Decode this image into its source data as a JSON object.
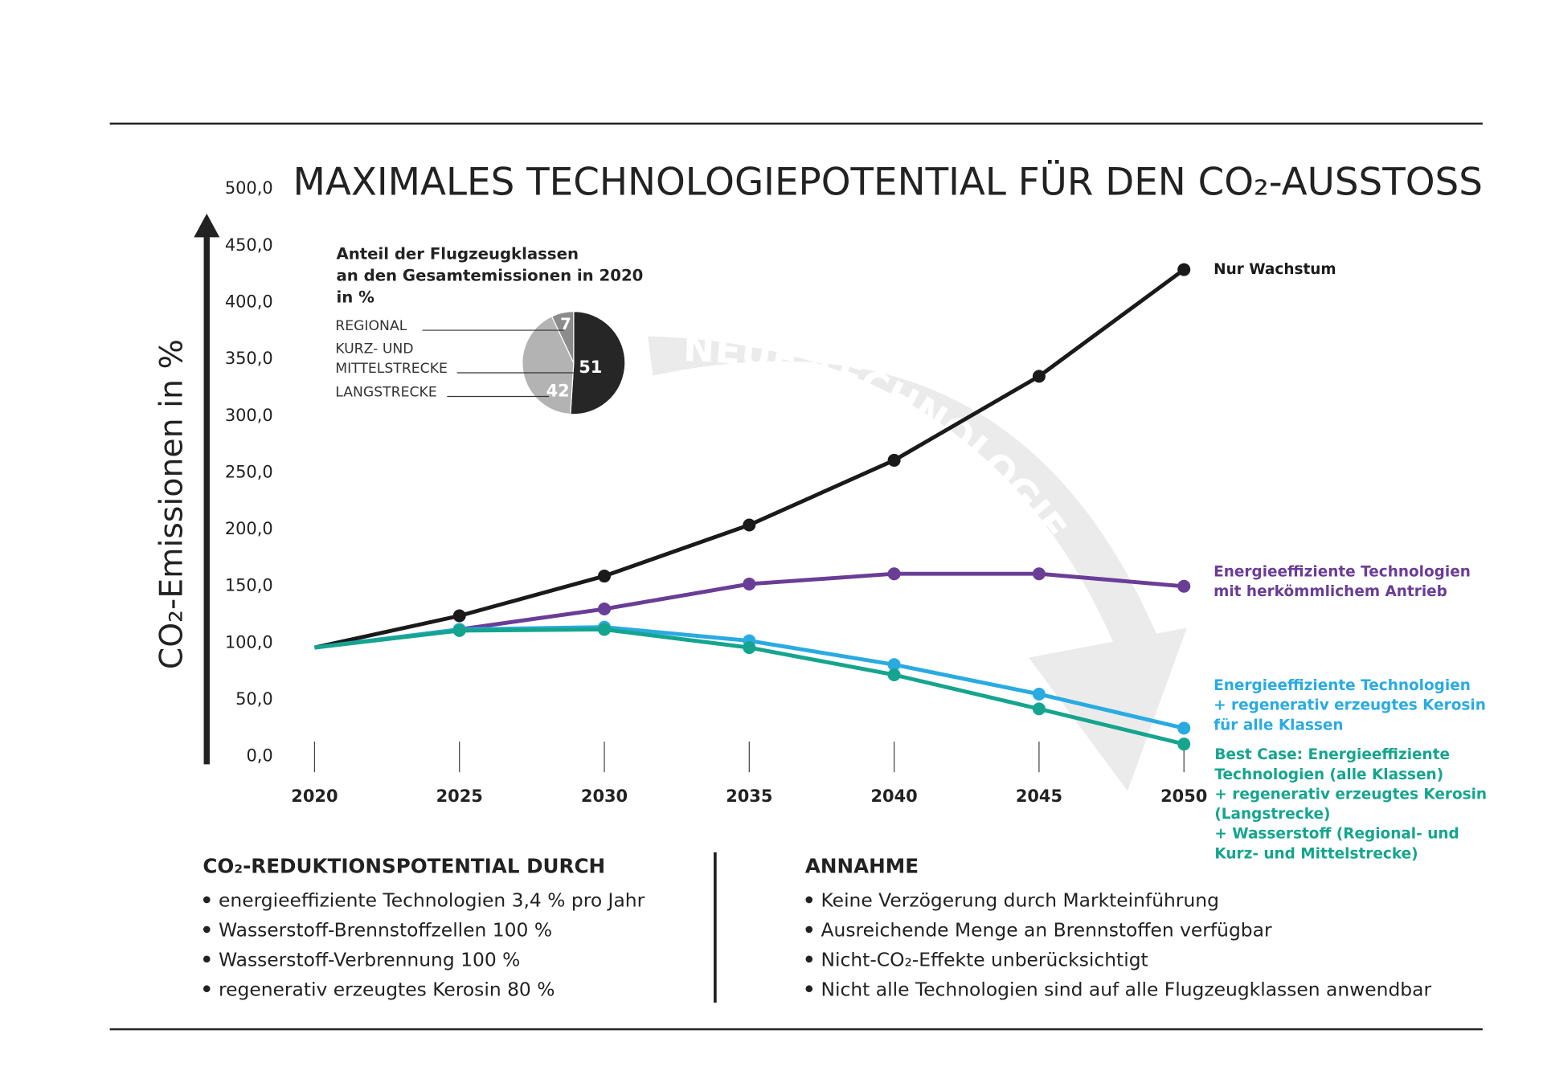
{
  "chart_data": {
    "type": "line",
    "title": "MAXIMALES TECHNOLOGIEPOTENTIAL FÜR DEN CO₂-AUSSTOSS",
    "ylabel": "CO₂-Emissionen in %",
    "xlabel": "",
    "x": [
      2020,
      2025,
      2030,
      2035,
      2040,
      2045,
      2050
    ],
    "x_tick_labels": [
      "2020",
      "2025",
      "2030",
      "2035",
      "2040",
      "2045",
      "2050"
    ],
    "ylim": [
      0,
      500
    ],
    "y_ticks": [
      0,
      50,
      100,
      150,
      200,
      250,
      300,
      350,
      400,
      450,
      500
    ],
    "y_tick_labels": [
      "0,0",
      "50,0",
      "100,0",
      "150,0",
      "200,0",
      "250,0",
      "300,0",
      "350,0",
      "400,0",
      "450,0",
      "500,0"
    ],
    "grid": false,
    "series": [
      {
        "name": "Nur Wachstum",
        "color": "#1a1a1a",
        "values": [
          95,
          123,
          158,
          203,
          260,
          334,
          428
        ]
      },
      {
        "name": "Energieeffiziente Technologien mit herkömmlichem Antrieb",
        "name_lines": [
          "Energieeffiziente Technologien",
          "mit herkömmlichem Antrieb"
        ],
        "color": "#6a3d96",
        "values": [
          95,
          111,
          129,
          151,
          160,
          160,
          149
        ]
      },
      {
        "name": "Energieeffiziente Technologien + regenerativ erzeugtes Kerosin für alle Klassen",
        "name_lines": [
          "Energieeffiziente Technologien",
          "+ regenerativ erzeugtes Kerosin",
          "für alle Klassen"
        ],
        "color": "#29abe2",
        "values": [
          95,
          111,
          113,
          101,
          80,
          54,
          24
        ]
      },
      {
        "name": "Best Case: Energieeffiziente Technologien (alle Klassen) + regenerativ erzeugtes Kerosin (Langstrecke) + Wasserstoff (Regional- und Kurz- und Mittelstrecke)",
        "name_lines": [
          "Best Case: Energieeffiziente",
          "Technologien (alle Klassen)",
          "+ regenerativ erzeugtes Kerosin",
          "(Langstrecke)",
          "+ Wasserstoff (Regional- und",
          "Kurz- und Mittelstrecke)"
        ],
        "color": "#15a58e",
        "values": [
          95,
          110,
          111,
          95,
          71,
          41,
          10
        ]
      }
    ],
    "watermark": "NEUE TECHNOLOGIE",
    "inset_pie": {
      "type": "pie",
      "title_lines": [
        "Anteil der Flugzeugklassen",
        "an den Gesamtemissionen in 2020",
        "in %"
      ],
      "slices": [
        {
          "label": "KURZ- UND MITTELSTRECKE",
          "label_lines": [
            "KURZ- UND",
            "MITTELSTRECKE"
          ],
          "value": 51,
          "color": "#262626"
        },
        {
          "label": "LANGSTRECKE",
          "label_lines": [
            "LANGSTRECKE"
          ],
          "value": 42,
          "color": "#b3b3b3"
        },
        {
          "label": "REGIONAL",
          "label_lines": [
            "REGIONAL"
          ],
          "value": 7,
          "color": "#8c8c8c"
        }
      ]
    }
  },
  "footer": {
    "left": {
      "heading": "CO₂-REDUKTIONSPOTENTIAL DURCH",
      "items": [
        "energieeffiziente Technologien 3,4 % pro Jahr",
        "Wasserstoff-Brennstoffzellen 100 %",
        "Wasserstoff-Verbrennung 100 %",
        "regenerativ erzeugtes Kerosin 80 %"
      ]
    },
    "right": {
      "heading": "ANNAHME",
      "items": [
        "Keine Verzögerung durch Markteinführung",
        "Ausreichende Menge an Brennstoffen verfügbar",
        "Nicht-CO₂-Effekte unberücksichtigt",
        "Nicht alle Technologien sind auf alle Flugzeugklassen anwendbar"
      ]
    }
  }
}
